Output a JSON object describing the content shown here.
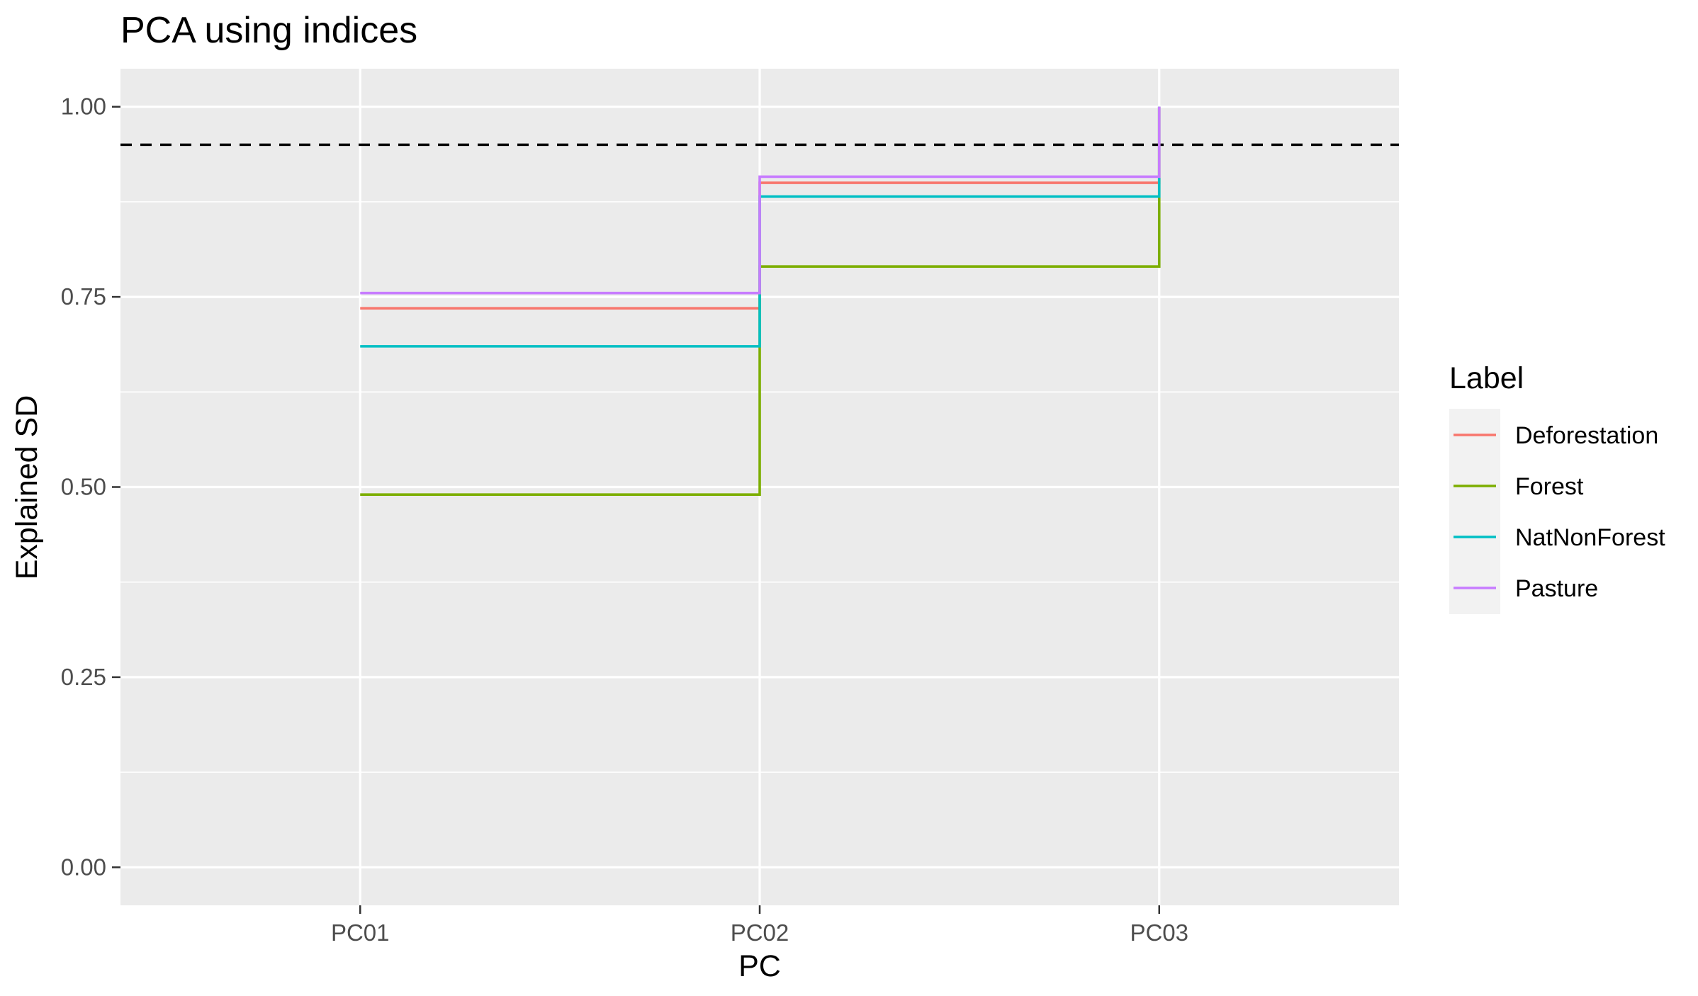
{
  "chart_data": {
    "type": "line",
    "step": "hv",
    "title": "PCA using indices",
    "xlabel": "PC",
    "ylabel": "Explained SD",
    "categories": [
      "PC01",
      "PC02",
      "PC03"
    ],
    "ylim": [
      -0.05,
      1.05
    ],
    "yticks": [
      0.0,
      0.25,
      0.5,
      0.75,
      1.0
    ],
    "ytick_labels": [
      "0.00",
      "0.25",
      "0.50",
      "0.75",
      "1.00"
    ],
    "reference_line": {
      "y": 0.95,
      "style": "dashed",
      "color": "#000000"
    },
    "grid": true,
    "legend": {
      "title": "Label",
      "position": "right"
    },
    "series": [
      {
        "name": "Deforestation",
        "color": "#F8766D",
        "values": [
          0.735,
          0.9,
          1.0
        ]
      },
      {
        "name": "Forest",
        "color": "#7CAE00",
        "values": [
          0.49,
          0.79,
          1.0
        ]
      },
      {
        "name": "NatNonForest",
        "color": "#00BFC4",
        "values": [
          0.685,
          0.882,
          1.0
        ]
      },
      {
        "name": "Pasture",
        "color": "#C77CFF",
        "values": [
          0.755,
          0.908,
          1.0
        ]
      }
    ]
  }
}
